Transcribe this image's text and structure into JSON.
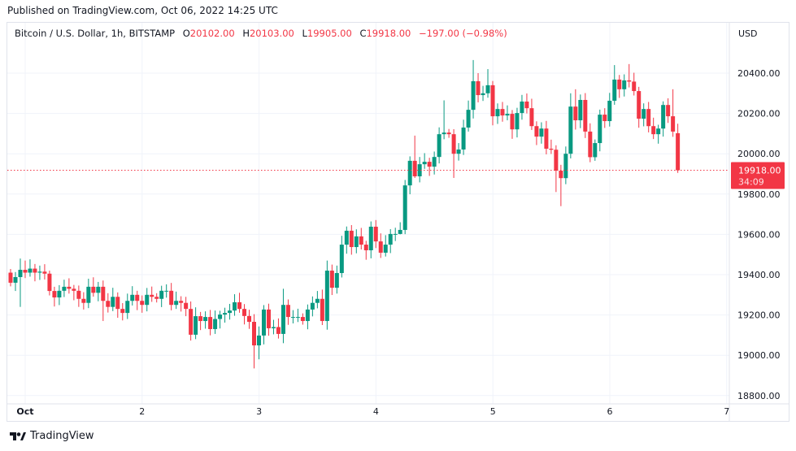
{
  "header": {
    "published": "Published on TradingView.com, Oct 06, 2022 14:25 UTC"
  },
  "legend": {
    "symbol": "Bitcoin / U.S. Dollar, 1h, BITSTAMP",
    "o_label": "O",
    "o": "20102.00",
    "h_label": "H",
    "h": "20103.00",
    "l_label": "L",
    "l": "19905.00",
    "c_label": "C",
    "c": "19918.00",
    "change": "−197.00 (−0.98%)"
  },
  "footer": {
    "brand": "TradingView",
    "logo_icon": "tradingview-logo-icon"
  },
  "colors": {
    "up": "#089981",
    "down": "#f23645",
    "grid": "#f0f3fa"
  },
  "chart_data": {
    "type": "candlestick",
    "interval": "1h",
    "currency_label": "USD",
    "ylim": [
      18750,
      20560
    ],
    "y_ticks": [
      "20400.00",
      "20200.00",
      "20000.00",
      "19800.00",
      "19600.00",
      "19400.00",
      "19200.00",
      "19000.00",
      "18800.00"
    ],
    "x_ticks": [
      "Oct",
      "2",
      "3",
      "4",
      "5",
      "6",
      "7"
    ],
    "first_candle": "Sep 30 21:00",
    "first_open": 19410,
    "last_open": 20102,
    "closes": [
      19360,
      19388,
      19424,
      19410,
      19430,
      19410,
      19415,
      19405,
      19319,
      19287,
      19320,
      19340,
      19330,
      19320,
      19280,
      19260,
      19340,
      19310,
      19340,
      19270,
      19240,
      19290,
      19230,
      19210,
      19270,
      19300,
      19270,
      19250,
      19300,
      19290,
      19280,
      19320,
      19320,
      19250,
      19270,
      19260,
      19230,
      19102,
      19194,
      19170,
      19190,
      19130,
      19180,
      19202,
      19210,
      19222,
      19263,
      19230,
      19195,
      19166,
      19049,
      19098,
      19227,
      19134,
      19140,
      19106,
      19250,
      19190,
      19190,
      19190,
      19170,
      19227,
      19260,
      19280,
      19170,
      19420,
      19335,
      19408,
      19549,
      19618,
      19537,
      19590,
      19549,
      19521,
      19638,
      19565,
      19509,
      19549,
      19602,
      19602,
      19622,
      19843,
      19965,
      19888,
      19948,
      19960,
      19936,
      19984,
      20097,
      20105,
      20097,
      20000,
      20021,
      20130,
      20218,
      20360,
      20291,
      20300,
      20340,
      20186,
      20222,
      20190,
      20198,
      20121,
      20202,
      20259,
      20226,
      20137,
      20085,
      20125,
      20025,
      20020,
      19916,
      19879,
      20000,
      20234,
      20166,
      20267,
      20110,
      19983,
      20053,
      20194,
      20162,
      20263,
      20368,
      20320,
      20364,
      20358,
      20311,
      20174,
      20222,
      20137,
      20097,
      20125,
      20242,
      20186,
      20110,
      19918
    ],
    "notable_highs": {
      "2": 19480,
      "3": 19470,
      "8": 19420,
      "56": 19330,
      "65": 19470,
      "81": 19870,
      "83": 20090,
      "89": 20265,
      "95": 20465,
      "96": 20400,
      "98": 20420,
      "115": 20300,
      "116": 20320,
      "124": 20440,
      "127": 20445,
      "134": 20260,
      "136": 20320
    },
    "notable_lows": {
      "2": 19240,
      "19": 19170,
      "50": 18935,
      "51": 18980,
      "80": 19600,
      "83": 19880,
      "91": 19880,
      "112": 19810,
      "113": 19740,
      "137": 19905
    },
    "current_price": "19918.00",
    "countdown": "34:09"
  }
}
